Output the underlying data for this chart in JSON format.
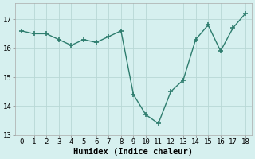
{
  "x": [
    0,
    1,
    2,
    3,
    4,
    5,
    6,
    7,
    8,
    9,
    10,
    11,
    12,
    13,
    14,
    15,
    16,
    17,
    18
  ],
  "y": [
    16.6,
    16.5,
    16.5,
    16.3,
    16.1,
    16.3,
    16.2,
    16.4,
    16.6,
    14.4,
    13.7,
    13.4,
    14.5,
    14.9,
    16.3,
    16.8,
    15.9,
    16.7,
    17.2
  ],
  "line_color": "#2e7d6e",
  "marker": "+",
  "marker_size": 4,
  "marker_linewidth": 1.2,
  "linewidth": 1.0,
  "linestyle": "-",
  "background_color": "#d6f0ef",
  "grid_color": "#b8d8d5",
  "xlabel": "Humidex (Indice chaleur)",
  "ylim": [
    13.0,
    17.55
  ],
  "xlim": [
    -0.5,
    18.5
  ],
  "yticks": [
    13,
    14,
    15,
    16,
    17
  ],
  "xticks": [
    0,
    1,
    2,
    3,
    4,
    5,
    6,
    7,
    8,
    9,
    10,
    11,
    12,
    13,
    14,
    15,
    16,
    17,
    18
  ],
  "tick_fontsize": 6.5,
  "xlabel_fontsize": 7.5
}
